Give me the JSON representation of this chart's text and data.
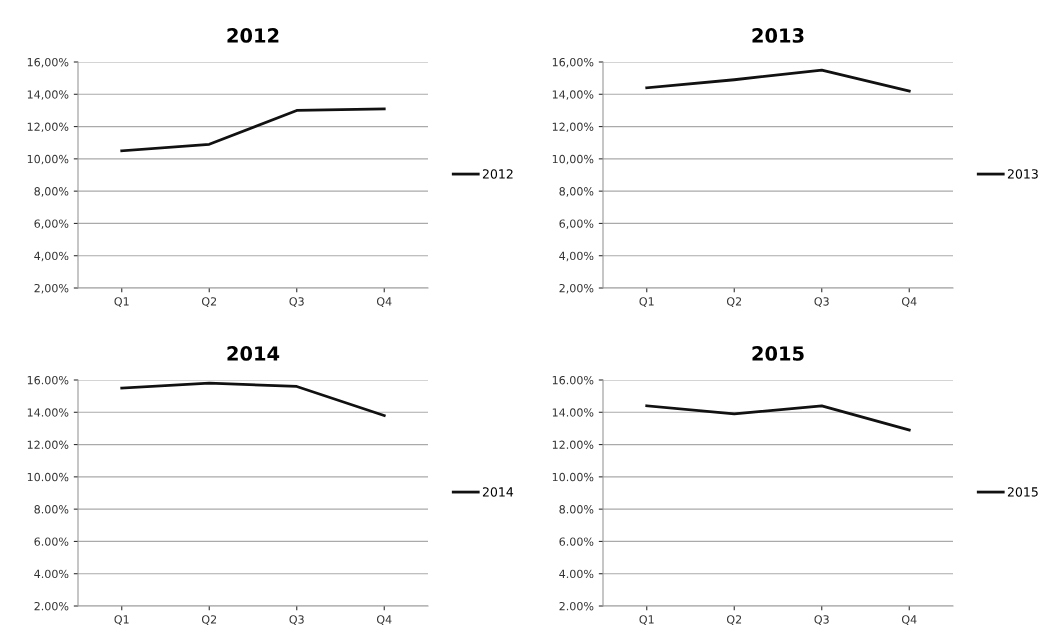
{
  "chart_data": [
    {
      "type": "line",
      "title": "2012",
      "categories": [
        "Q1",
        "Q2",
        "Q3",
        "Q4"
      ],
      "series": [
        {
          "name": "2012",
          "color": "#111111",
          "values": [
            10.5,
            10.9,
            13.0,
            13.1
          ]
        }
      ],
      "ylim": [
        2,
        16
      ],
      "yticks": [
        {
          "value": 2,
          "label": "2,00%"
        },
        {
          "value": 4,
          "label": "4,00%"
        },
        {
          "value": 6,
          "label": "6,00%"
        },
        {
          "value": 8,
          "label": "8,00%"
        },
        {
          "value": 10,
          "label": "10,00%"
        },
        {
          "value": 12,
          "label": "12,00%"
        },
        {
          "value": 14,
          "label": "14,00%"
        },
        {
          "value": 16,
          "label": "16,00%"
        }
      ],
      "grid": "y",
      "legend": "right"
    },
    {
      "type": "line",
      "title": "2013",
      "categories": [
        "Q1",
        "Q2",
        "Q3",
        "Q4"
      ],
      "series": [
        {
          "name": "2013",
          "color": "#111111",
          "values": [
            14.4,
            14.9,
            15.5,
            14.2
          ]
        }
      ],
      "ylim": [
        2,
        16
      ],
      "yticks": [
        {
          "value": 2,
          "label": "2,00%"
        },
        {
          "value": 4,
          "label": "4,00%"
        },
        {
          "value": 6,
          "label": "6,00%"
        },
        {
          "value": 8,
          "label": "8,00%"
        },
        {
          "value": 10,
          "label": "10,00%"
        },
        {
          "value": 12,
          "label": "12,00%"
        },
        {
          "value": 14,
          "label": "14,00%"
        },
        {
          "value": 16,
          "label": "16,00%"
        }
      ],
      "grid": "y",
      "legend": "right"
    },
    {
      "type": "line",
      "title": "2014",
      "categories": [
        "Q1",
        "Q2",
        "Q3",
        "Q4"
      ],
      "series": [
        {
          "name": "2014",
          "color": "#111111",
          "values": [
            15.5,
            15.8,
            15.6,
            13.8
          ]
        }
      ],
      "ylim": [
        2,
        16
      ],
      "yticks": [
        {
          "value": 2,
          "label": "2.00%"
        },
        {
          "value": 4,
          "label": "4.00%"
        },
        {
          "value": 6,
          "label": "6.00%"
        },
        {
          "value": 8,
          "label": "8.00%"
        },
        {
          "value": 10,
          "label": "10.00%"
        },
        {
          "value": 12,
          "label": "12.00%"
        },
        {
          "value": 14,
          "label": "14.00%"
        },
        {
          "value": 16,
          "label": "16.00%"
        }
      ],
      "grid": "y",
      "legend": "right"
    },
    {
      "type": "line",
      "title": "2015",
      "categories": [
        "Q1",
        "Q2",
        "Q3",
        "Q4"
      ],
      "series": [
        {
          "name": "2015",
          "color": "#111111",
          "values": [
            14.4,
            13.9,
            14.4,
            12.9
          ]
        }
      ],
      "ylim": [
        2,
        16
      ],
      "yticks": [
        {
          "value": 2,
          "label": "2.00%"
        },
        {
          "value": 4,
          "label": "4.00%"
        },
        {
          "value": 6,
          "label": "6.00%"
        },
        {
          "value": 8,
          "label": "8.00%"
        },
        {
          "value": 10,
          "label": "10.00%"
        },
        {
          "value": 12,
          "label": "12.00%"
        },
        {
          "value": 14,
          "label": "14.00%"
        },
        {
          "value": 16,
          "label": "16.00%"
        }
      ],
      "grid": "y",
      "legend": "right"
    }
  ]
}
